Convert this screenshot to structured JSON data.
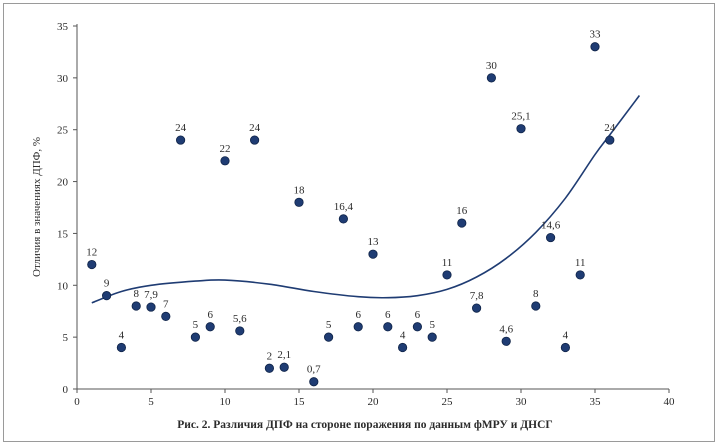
{
  "chart_data": {
    "type": "scatter",
    "title": "",
    "caption": "Рис. 2. Различия ДПФ на стороне поражения по данным фМРУ и ДНСГ",
    "xlabel": "",
    "ylabel": "Отличия в значениях ДПФ, %",
    "xlim": [
      0,
      40
    ],
    "ylim": [
      0,
      35
    ],
    "xticks": [
      "0",
      "5",
      "10",
      "15",
      "20",
      "25",
      "30",
      "35",
      "40"
    ],
    "yticks": [
      "0",
      "5",
      "10",
      "15",
      "20",
      "25",
      "30",
      "35"
    ],
    "grid": false,
    "points": [
      {
        "x": 1,
        "y": 12,
        "label": "12"
      },
      {
        "x": 2,
        "y": 9,
        "label": "9"
      },
      {
        "x": 3,
        "y": 4,
        "label": "4"
      },
      {
        "x": 4,
        "y": 8,
        "label": "8"
      },
      {
        "x": 5,
        "y": 7.9,
        "label": "7,9"
      },
      {
        "x": 6,
        "y": 7,
        "label": "7"
      },
      {
        "x": 7,
        "y": 24,
        "label": "24"
      },
      {
        "x": 8,
        "y": 5,
        "label": "5"
      },
      {
        "x": 9,
        "y": 6,
        "label": "6"
      },
      {
        "x": 10,
        "y": 22,
        "label": "22"
      },
      {
        "x": 11,
        "y": 5.6,
        "label": "5,6"
      },
      {
        "x": 12,
        "y": 24,
        "label": "24"
      },
      {
        "x": 13,
        "y": 2,
        "label": "2"
      },
      {
        "x": 14,
        "y": 2.1,
        "label": "2,1"
      },
      {
        "x": 15,
        "y": 18,
        "label": "18"
      },
      {
        "x": 16,
        "y": 0.7,
        "label": "0,7"
      },
      {
        "x": 17,
        "y": 5,
        "label": "5"
      },
      {
        "x": 18,
        "y": 16.4,
        "label": "16,4"
      },
      {
        "x": 19,
        "y": 6,
        "label": "6"
      },
      {
        "x": 20,
        "y": 13,
        "label": "13"
      },
      {
        "x": 21,
        "y": 6,
        "label": "6"
      },
      {
        "x": 22,
        "y": 4,
        "label": "4"
      },
      {
        "x": 23,
        "y": 6,
        "label": "6"
      },
      {
        "x": 24,
        "y": 5,
        "label": "5"
      },
      {
        "x": 25,
        "y": 11,
        "label": "11"
      },
      {
        "x": 26,
        "y": 16,
        "label": "16"
      },
      {
        "x": 27,
        "y": 7.8,
        "label": "7,8"
      },
      {
        "x": 28,
        "y": 30,
        "label": "30"
      },
      {
        "x": 29,
        "y": 4.6,
        "label": "4,6"
      },
      {
        "x": 30,
        "y": 25.1,
        "label": "25,1"
      },
      {
        "x": 31,
        "y": 8,
        "label": "8"
      },
      {
        "x": 32,
        "y": 14.6,
        "label": "14,6"
      },
      {
        "x": 33,
        "y": 4,
        "label": "4"
      },
      {
        "x": 34,
        "y": 11,
        "label": "11"
      },
      {
        "x": 35,
        "y": 33,
        "label": "33"
      },
      {
        "x": 36,
        "y": 24,
        "label": "24"
      }
    ],
    "trendline": {
      "type": "polynomial",
      "x": [
        1,
        3,
        5,
        8,
        10,
        13,
        16,
        19,
        21,
        23,
        25,
        27,
        29,
        31,
        33,
        35,
        36,
        38
      ],
      "y": [
        8.3,
        9.4,
        10.0,
        10.4,
        10.5,
        10.1,
        9.4,
        8.9,
        8.8,
        9.0,
        9.6,
        10.8,
        12.6,
        15.1,
        18.4,
        22.6,
        24.5,
        28.3
      ]
    },
    "colors": {
      "point_fill": "#1f3c73",
      "point_stroke": "#0f2347",
      "trendline": "#1f3c73",
      "axis": "#555555",
      "text": "#2b2b2b"
    }
  }
}
